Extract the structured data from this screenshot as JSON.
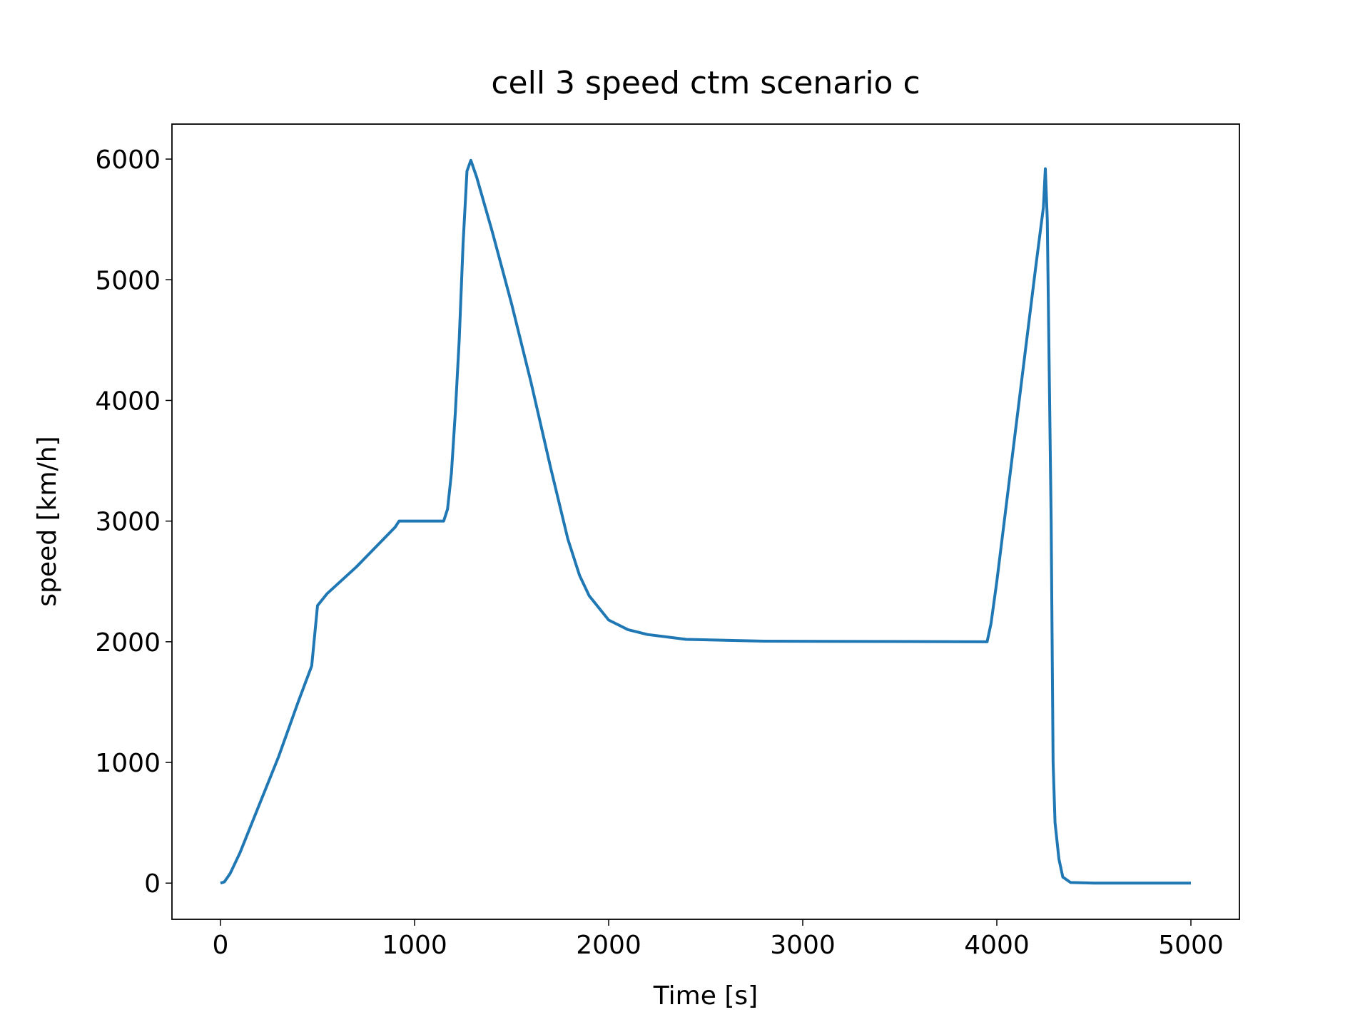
{
  "chart_data": {
    "type": "line",
    "title": "cell 3 speed ctm scenario c",
    "x_label": "Time [s]",
    "y_label": "speed [km/h]",
    "x": [
      0,
      20,
      50,
      100,
      200,
      300,
      400,
      470,
      500,
      550,
      700,
      900,
      920,
      1150,
      1170,
      1190,
      1210,
      1230,
      1250,
      1270,
      1290,
      1320,
      1400,
      1500,
      1600,
      1700,
      1790,
      1850,
      1900,
      2000,
      2100,
      2200,
      2400,
      2800,
      3950,
      3970,
      4000,
      4100,
      4200,
      4240,
      4250,
      4260,
      4280,
      4290,
      4300,
      4320,
      4340,
      4380,
      4500,
      5000
    ],
    "series": [
      {
        "name": "speed",
        "color": "#1f77b4",
        "values": [
          0,
          10,
          80,
          250,
          650,
          1050,
          1500,
          1800,
          2300,
          2400,
          2620,
          2950,
          3000,
          3000,
          3100,
          3400,
          3900,
          4500,
          5300,
          5900,
          5990,
          5850,
          5400,
          4800,
          4150,
          3450,
          2850,
          2550,
          2380,
          2180,
          2100,
          2060,
          2020,
          2005,
          2000,
          2150,
          2500,
          3800,
          5100,
          5600,
          5920,
          5500,
          3000,
          1000,
          500,
          200,
          50,
          5,
          0,
          0
        ]
      }
    ],
    "xlim": [
      -250,
      5250
    ],
    "ylim": [
      -300,
      6290
    ],
    "xticks": [
      0,
      1000,
      2000,
      3000,
      4000,
      5000
    ],
    "yticks": [
      0,
      1000,
      2000,
      3000,
      4000,
      5000,
      6000
    ]
  }
}
